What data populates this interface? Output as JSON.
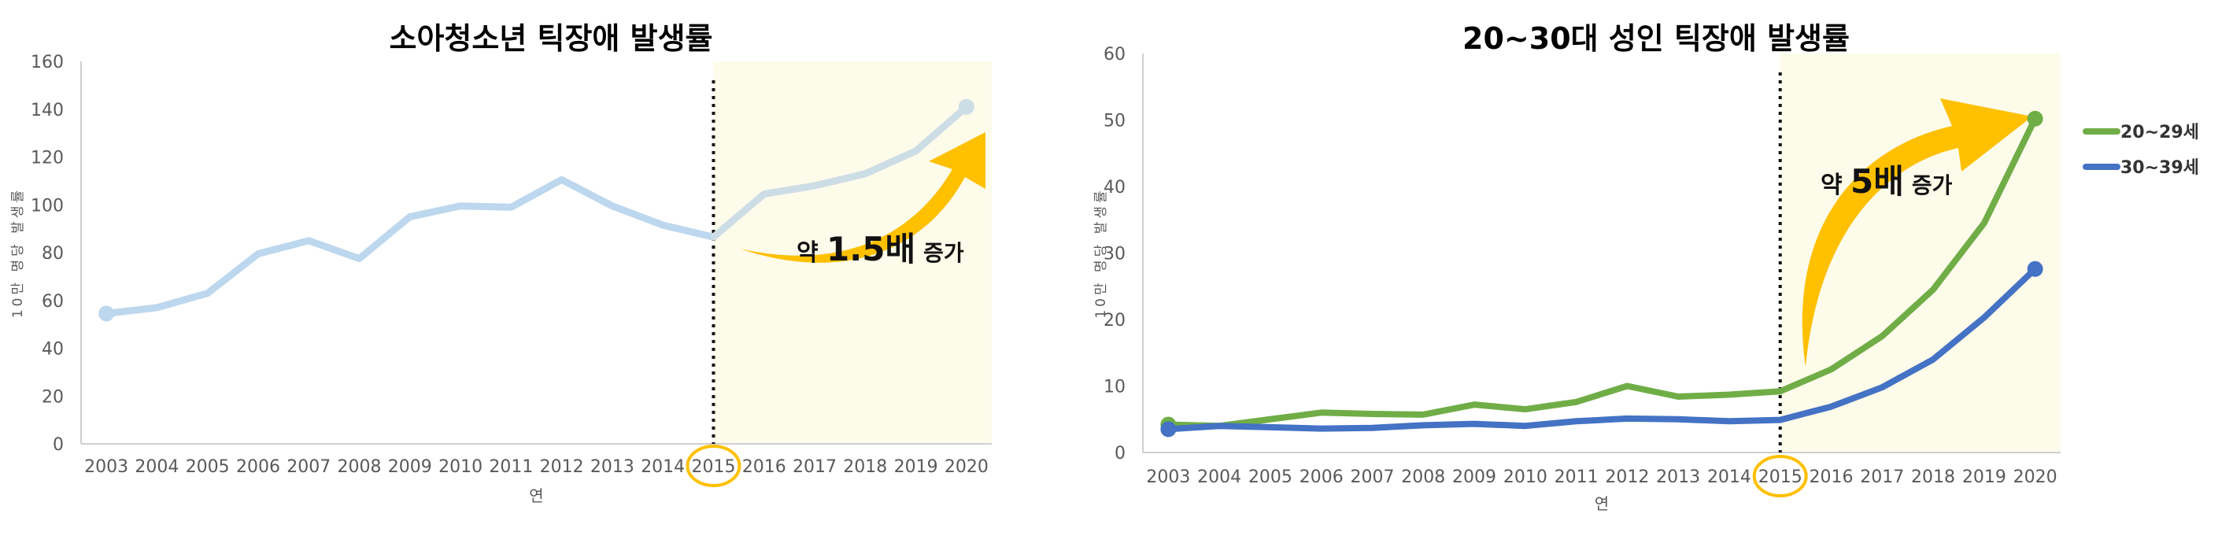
{
  "colors": {
    "background": "#ffffff",
    "highlight_region": "#fdfbea",
    "axis": "#cfcfcf",
    "tick_text": "#595959",
    "title_text": "#000000",
    "youth_line": "#bdd7ee",
    "youth_line_after": "#cddde6",
    "adult_20s": "#70ad47",
    "adult_30s": "#4472c4",
    "arrow": "#ffc000",
    "circle": "#ffc000"
  },
  "chart_data": [
    {
      "type": "line",
      "title": "소아청소년 틱장애 발생률",
      "xlabel": "연",
      "ylabel": "10만 명당 발생률",
      "ylim": [
        0,
        160
      ],
      "yticks": [
        0,
        20,
        40,
        60,
        80,
        100,
        120,
        140,
        160
      ],
      "categories": [
        "2003",
        "2004",
        "2005",
        "2006",
        "2007",
        "2008",
        "2009",
        "2010",
        "2011",
        "2012",
        "2013",
        "2014",
        "2015",
        "2016",
        "2017",
        "2018",
        "2019",
        "2020"
      ],
      "series": [
        {
          "values": [
            54.5,
            57,
            63,
            79.5,
            85,
            77.5,
            95,
            99.5,
            99,
            110.5,
            99.5,
            91.5,
            86.5,
            104.5,
            108,
            113,
            122.5,
            141
          ]
        }
      ],
      "divider_at": "2015",
      "highlight_from": "2015",
      "annotation": {
        "prefix": "약",
        "value": "1.5배",
        "suffix": "증가"
      },
      "circled_tick": "2015",
      "grid": false,
      "legend": "none"
    },
    {
      "type": "line",
      "title": "20~30대 성인 틱장애 발생률",
      "xlabel": "연",
      "ylabel": "10만 명당 발생률",
      "ylim": [
        0,
        60
      ],
      "yticks": [
        0,
        10,
        20,
        30,
        40,
        50,
        60
      ],
      "categories": [
        "2003",
        "2004",
        "2005",
        "2006",
        "2007",
        "2008",
        "2009",
        "2010",
        "2011",
        "2012",
        "2013",
        "2014",
        "2015",
        "2016",
        "2017",
        "2018",
        "2019",
        "2020"
      ],
      "series": [
        {
          "name": "20~29세",
          "values": [
            4.2,
            4.0,
            5.0,
            6.0,
            5.8,
            5.7,
            7.2,
            6.5,
            7.6,
            10.0,
            8.4,
            8.7,
            9.2,
            12.5,
            17.5,
            24.5,
            34.5,
            50.2
          ]
        },
        {
          "name": "30~39세",
          "values": [
            3.5,
            4.0,
            3.8,
            3.6,
            3.7,
            4.1,
            4.3,
            4.0,
            4.7,
            5.1,
            5.0,
            4.7,
            4.9,
            6.9,
            9.8,
            14.0,
            20.3,
            27.6
          ]
        }
      ],
      "divider_at": "2015",
      "highlight_from": "2015",
      "annotation": {
        "prefix": "약",
        "value": "5배",
        "suffix": "증가"
      },
      "circled_tick": "2015",
      "grid": false,
      "legend": "right"
    }
  ]
}
